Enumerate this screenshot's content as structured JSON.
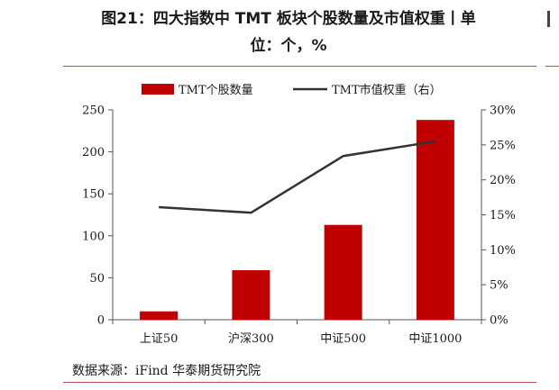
{
  "header": {
    "title_line1": "图21：四大指数中 TMT 板块个股数量及市值权重丨单",
    "title_line2": "位：个，%"
  },
  "source": "数据来源：iFind 华泰期货研究院",
  "chart_data": {
    "type": "bar+line",
    "categories": [
      "上证50",
      "沪深300",
      "中证500",
      "中证1000"
    ],
    "series": [
      {
        "name": "TMT个股数量",
        "type": "bar",
        "axis": "left",
        "values": [
          10,
          59,
          113,
          238
        ],
        "color": "#c00000"
      },
      {
        "name": "TMT市值权重（右）",
        "type": "line",
        "axis": "right",
        "values": [
          16.1,
          15.3,
          23.4,
          25.5
        ],
        "color": "#333333"
      }
    ],
    "yleft": {
      "range": [
        0,
        250
      ],
      "ticks": [
        0,
        50,
        100,
        150,
        200,
        250
      ]
    },
    "yright": {
      "range": [
        0,
        30
      ],
      "ticks": [
        "0%",
        "5%",
        "10%",
        "15%",
        "20%",
        "25%",
        "30%"
      ]
    },
    "legend": "top-center",
    "grid": false
  }
}
